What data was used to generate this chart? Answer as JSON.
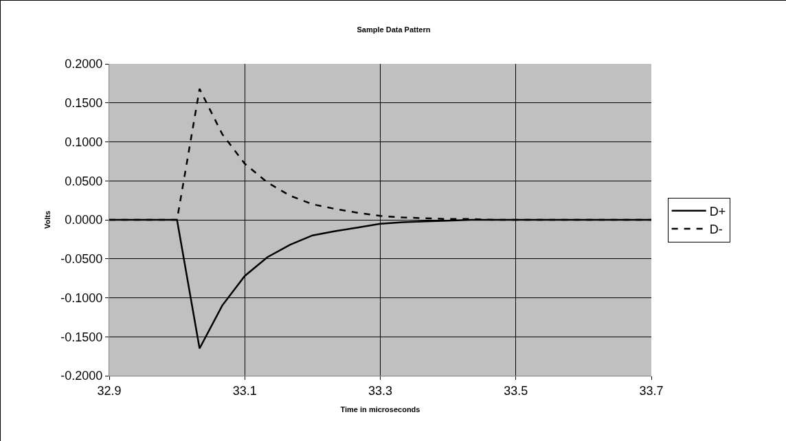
{
  "chart_data": {
    "type": "line",
    "title": "Sample Data Pattern",
    "xlabel": "Time in microseconds",
    "ylabel": "Volts",
    "x": [
      32.9,
      32.9333,
      32.9667,
      33.0,
      33.0333,
      33.0667,
      33.1,
      33.1333,
      33.1667,
      33.2,
      33.2333,
      33.2667,
      33.3,
      33.3333,
      33.3667,
      33.4,
      33.4333,
      33.4667,
      33.5,
      33.5333,
      33.5667,
      33.6,
      33.6333,
      33.6667,
      33.7
    ],
    "series": [
      {
        "name": "D+",
        "color": "#000000",
        "line_style": "solid",
        "values": [
          0,
          0,
          0,
          0,
          -0.165,
          -0.11,
          -0.072,
          -0.048,
          -0.032,
          -0.02,
          -0.0145,
          -0.01,
          -0.005,
          -0.003,
          -0.002,
          -0.001,
          0,
          0,
          0,
          0,
          0,
          0,
          0,
          0,
          0
        ]
      },
      {
        "name": "D-",
        "color": "#000000",
        "line_style": "dashed",
        "values": [
          0,
          0,
          0,
          0,
          0.168,
          0.11,
          0.072,
          0.048,
          0.031,
          0.02,
          0.014,
          0.009,
          0.005,
          0.003,
          0.002,
          0.001,
          0.001,
          0,
          0,
          0,
          0,
          0,
          0,
          0,
          0
        ]
      }
    ],
    "xlim": [
      32.9,
      33.7
    ],
    "xticks": [
      32.9,
      33.1,
      33.3,
      33.5,
      33.7
    ],
    "ylim": [
      -0.2,
      0.2
    ],
    "yticks": [
      {
        "value": -0.2,
        "label": "-0.2000"
      },
      {
        "value": -0.15,
        "label": "-0.1500"
      },
      {
        "value": -0.1,
        "label": "-0.1000"
      },
      {
        "value": -0.05,
        "label": "-0.0500"
      },
      {
        "value": 0,
        "label": "0.0000"
      },
      {
        "value": 0.05,
        "label": "0.0500"
      },
      {
        "value": 0.1,
        "label": "0.1000"
      },
      {
        "value": 0.15,
        "label": "0.1500"
      },
      {
        "value": 0.2,
        "label": "0.2000"
      }
    ],
    "grid": true,
    "legend": "right",
    "marker": "none"
  }
}
